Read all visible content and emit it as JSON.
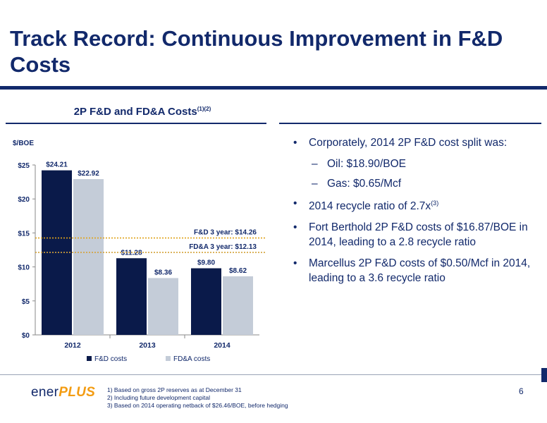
{
  "slide": {
    "title": "Track Record: Continuous Improvement in F&D Costs",
    "page_number": "6"
  },
  "chart_header": {
    "title": "2P F&D and FD&A Costs",
    "superscript": "(1)(2)"
  },
  "chart_data": {
    "type": "bar",
    "ylabel": "$/BOE",
    "categories": [
      "2012",
      "2013",
      "2014"
    ],
    "series": [
      {
        "name": "F&D costs",
        "values": [
          24.21,
          11.28,
          9.8
        ],
        "labels": [
          "$24.21",
          "$11.28",
          "$9.80"
        ],
        "color": "#0a1a4a"
      },
      {
        "name": "FD&A costs",
        "values": [
          22.92,
          8.36,
          8.62
        ],
        "labels": [
          "$22.92",
          "$8.36",
          "$8.62"
        ],
        "color": "#c4ccd8"
      }
    ],
    "ylim": [
      0,
      25
    ],
    "yticks": [
      0,
      5,
      10,
      15,
      20,
      25
    ],
    "ytick_labels": [
      "$0",
      "$5",
      "$10",
      "$15",
      "$20",
      "$25"
    ],
    "reference_lines": [
      {
        "label": "F&D 3 year: $14.26",
        "value": 14.26,
        "color": "#e0a31a"
      },
      {
        "label": "FD&A 3 year: $12.13",
        "value": 12.13,
        "color": "#d4a23a"
      }
    ],
    "grid": false,
    "legend_position": "bottom"
  },
  "bullets": {
    "b1": "Corporately, 2014 2P F&D cost split was:",
    "b1_sub1": "Oil: $18.90/BOE",
    "b1_sub2": "Gas: $0.65/Mcf",
    "b2": "2014 recycle ratio of 2.7x",
    "b2_sup": "(3)",
    "b3": "Fort Berthold 2P F&D costs of $16.87/BOE in 2014, leading to a 2.8 recycle ratio",
    "b4": "Marcellus 2P F&D costs of $0.50/Mcf in 2014, leading to a 3.6 recycle ratio"
  },
  "logo": {
    "part1": "ener",
    "part2": "PLUS"
  },
  "footnotes": [
    "1)  Based on gross 2P reserves as at December 31",
    "2)  Including future development capital",
    "3)  Based on 2014 operating netback of $26.46/BOE, before hedging"
  ]
}
